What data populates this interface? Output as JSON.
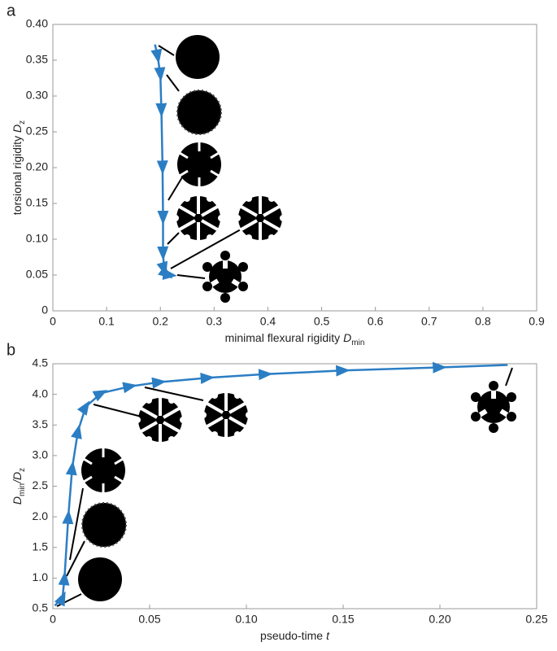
{
  "chart_data": [
    {
      "type": "line",
      "panel_label": "a",
      "x_label": [
        "minimal flexural rigidity",
        "D",
        "min"
      ],
      "y_label": [
        "torsional rigidity",
        "D",
        "z"
      ],
      "color": "#2b7ec4",
      "x": [
        0.19,
        0.195,
        0.2,
        0.202,
        0.204,
        0.205,
        0.205,
        0.207,
        0.212,
        0.218,
        0.225
      ],
      "values": [
        0.372,
        0.355,
        0.33,
        0.28,
        0.2,
        0.13,
        0.08,
        0.058,
        0.051,
        0.05,
        0.05
      ],
      "xlim": [
        0,
        0.9
      ],
      "xticks": [
        0,
        0.1,
        0.2,
        0.3,
        0.4,
        0.5,
        0.6,
        0.7,
        0.8,
        0.9
      ],
      "ylim": [
        0,
        0.4
      ],
      "yticks": [
        0,
        0.05,
        {
          "value": 0.1,
          "label": "0.10"
        },
        0.15,
        {
          "value": 0.2,
          "label": "0.20"
        },
        0.25,
        {
          "value": 0.3,
          "label": "0.30"
        },
        0.35,
        {
          "value": 0.4,
          "label": "0.40"
        }
      ]
    },
    {
      "type": "line",
      "panel_label": "b",
      "x_label": [
        "pseudo-time",
        "t"
      ],
      "y_label": [
        "D",
        "min",
        "/D",
        "z"
      ],
      "color": "#2b7ec4",
      "x": [
        0.001,
        0.005,
        0.006,
        0.008,
        0.01,
        0.013,
        0.017,
        0.025,
        0.04,
        0.055,
        0.08,
        0.11,
        0.15,
        0.2,
        0.235
      ],
      "values": [
        0.55,
        0.68,
        1.0,
        2.0,
        2.8,
        3.4,
        3.8,
        4.02,
        4.13,
        4.2,
        4.27,
        4.33,
        4.39,
        4.44,
        4.48
      ],
      "xlim": [
        0,
        0.25
      ],
      "xticks": [
        0,
        0.05,
        {
          "value": 0.1,
          "label": "0.10"
        },
        0.15,
        {
          "value": 0.2,
          "label": "0.20"
        },
        0.25
      ],
      "ylim": [
        0.5,
        4.5
      ],
      "yticks": [
        0.5,
        {
          "value": 1,
          "label": "1.0"
        },
        1.5,
        {
          "value": 2,
          "label": "2.0"
        },
        2.5,
        {
          "value": 3,
          "label": "3.0"
        },
        3.5,
        {
          "value": 4,
          "label": "4.0"
        },
        4.5
      ]
    }
  ]
}
